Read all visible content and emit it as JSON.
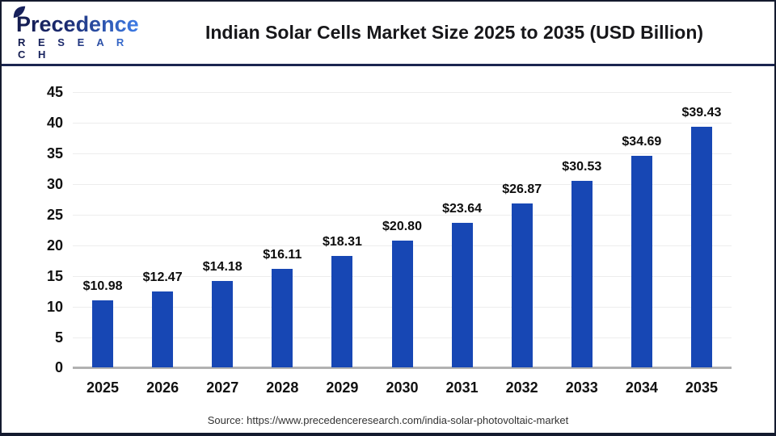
{
  "header": {
    "logo": {
      "line1": "Precedence",
      "line2": "R E S E A R C H"
    },
    "title": "Indian Solar Cells Market Size 2025 to 2035 (USD Billion)"
  },
  "chart_data": {
    "type": "bar",
    "title": "Indian Solar Cells Market Size 2025 to 2035 (USD Billion)",
    "categories": [
      "2025",
      "2026",
      "2027",
      "2028",
      "2029",
      "2030",
      "2031",
      "2032",
      "2033",
      "2034",
      "2035"
    ],
    "values": [
      10.98,
      12.47,
      14.18,
      16.11,
      18.31,
      20.8,
      23.64,
      26.87,
      30.53,
      34.69,
      39.43
    ],
    "value_labels": [
      "$10.98",
      "$12.47",
      "$14.18",
      "$16.11",
      "$18.31",
      "$20.80",
      "$23.64",
      "$26.87",
      "$30.53",
      "$34.69",
      "$39.43"
    ],
    "xlabel": "",
    "ylabel": "",
    "ylim": [
      0,
      45
    ],
    "yticks": [
      0,
      5,
      10,
      15,
      20,
      25,
      30,
      35,
      40,
      45
    ],
    "grid": true,
    "legend": false,
    "bar_color": "#1747b4"
  },
  "footer": {
    "source": "Source: https://www.precedenceresearch.com/india-solar-photovoltaic-market"
  },
  "colors": {
    "bar": "#1747b4",
    "header_rule": "#1b2550",
    "frame": "#141a2e",
    "grid": "#ededed",
    "baseline": "#b1b1b1",
    "logo_dark": "#131b4e",
    "logo_light": "#3e7de8"
  }
}
